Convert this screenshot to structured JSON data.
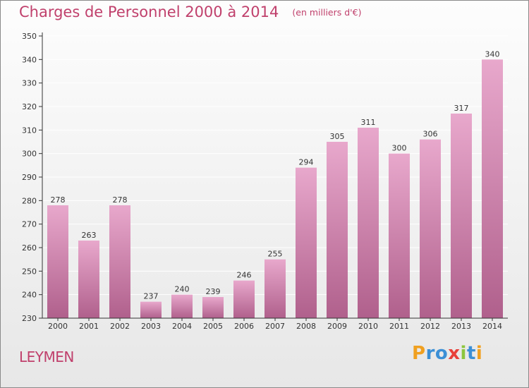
{
  "title": "Charges de Personnel 2000 à 2014",
  "subtitle": "(en milliers d'€)",
  "city": "LEYMEN",
  "logo": {
    "letters": [
      "P",
      "r",
      "o",
      "x",
      "i",
      "t",
      "i"
    ],
    "colors": [
      "#f0a020",
      "#3b8fd6",
      "#3b8fd6",
      "#e8403a",
      "#8cc63e",
      "#3b8fd6",
      "#f0a020"
    ]
  },
  "colors": {
    "accent": "#c0406c",
    "bar_top": "#e8a8cc",
    "bar_bottom": "#b0608c",
    "axis": "#333333",
    "grid": "#ffffff"
  },
  "chart_data": {
    "type": "bar",
    "categories": [
      "2000",
      "2001",
      "2002",
      "2003",
      "2004",
      "2005",
      "2006",
      "2007",
      "2008",
      "2009",
      "2010",
      "2011",
      "2012",
      "2013",
      "2014"
    ],
    "values": [
      278,
      263,
      278,
      237,
      240,
      239,
      246,
      255,
      294,
      305,
      311,
      300,
      306,
      317,
      340
    ],
    "ylim": [
      230,
      350
    ],
    "yticks": [
      230,
      240,
      250,
      260,
      270,
      280,
      290,
      300,
      310,
      320,
      330,
      340,
      350
    ],
    "grid": true,
    "data_labels": true
  }
}
